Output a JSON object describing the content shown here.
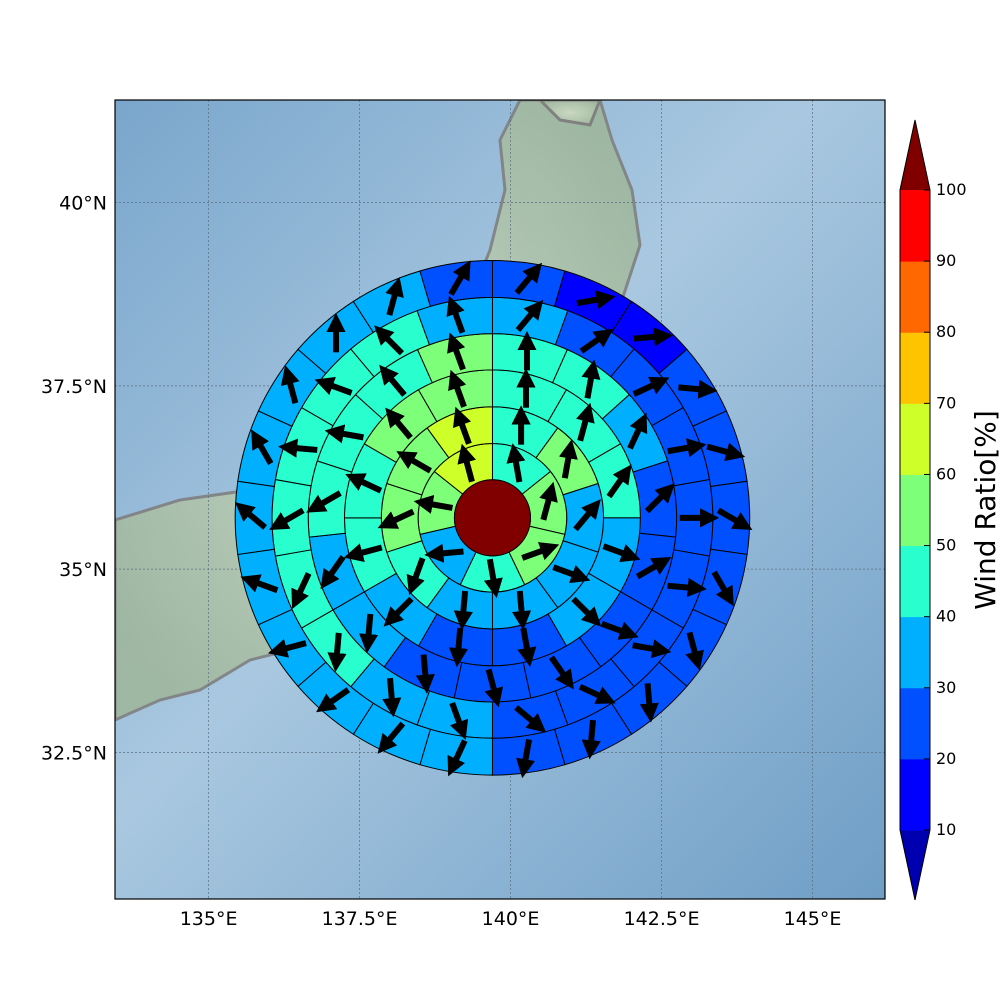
{
  "chart_data": {
    "type": "heatmap",
    "projection": "polar sector grid over map",
    "x_ticks": [
      {
        "lon": 135,
        "label": "135°E"
      },
      {
        "lon": 137.5,
        "label": "137.5°E"
      },
      {
        "lon": 140,
        "label": "140°E"
      },
      {
        "lon": 142.5,
        "label": "142.5°E"
      },
      {
        "lon": 145,
        "label": "145°E"
      }
    ],
    "y_ticks": [
      {
        "lat": 40,
        "label": "40°N"
      },
      {
        "lat": 37.5,
        "label": "37.5°N"
      },
      {
        "lat": 35,
        "label": "35°N"
      },
      {
        "lat": 32.5,
        "label": "32.5°N"
      }
    ],
    "xlim": [
      133.45,
      146.2
    ],
    "ylim": [
      30.5,
      41.4
    ],
    "grid": true,
    "center": {
      "lon": 139.7,
      "lat": 35.7
    },
    "rings_deg": [
      0.63,
      1.23,
      1.84,
      2.45,
      3.05,
      3.65,
      4.26
    ],
    "center_value": 100,
    "colorbar": {
      "label": "Wind Ratio[%]",
      "levels": [
        10,
        20,
        30,
        40,
        50,
        60,
        70,
        80,
        90,
        100
      ],
      "tick_labels": [
        "10",
        "20",
        "30",
        "40",
        "50",
        "60",
        "70",
        "80",
        "90",
        "100"
      ],
      "colors": [
        "#0000b0",
        "#0000ff",
        "#0050ff",
        "#00b0ff",
        "#29ffce",
        "#7dff7a",
        "#ceff29",
        "#ffc400",
        "#ff6800",
        "#ff0000",
        "#800000"
      ],
      "extend": "both"
    },
    "ring_values": [
      [
        45,
        55,
        55,
        45,
        35,
        55,
        65
      ],
      [
        45,
        55,
        35,
        35,
        35,
        35,
        45,
        55,
        55,
        65
      ],
      [
        45,
        45,
        45,
        35,
        35,
        25,
        25,
        35,
        45,
        45,
        55,
        55
      ],
      [
        45,
        45,
        35,
        25,
        25,
        25,
        25,
        25,
        25,
        35,
        35,
        45,
        45,
        45,
        55
      ],
      [
        35,
        25,
        25,
        25,
        25,
        25,
        25,
        25,
        25,
        35,
        35,
        45,
        45,
        45,
        45,
        45,
        45,
        35
      ],
      [
        25,
        15,
        15,
        25,
        25,
        25,
        25,
        25,
        25,
        25,
        25,
        35,
        35,
        35,
        35,
        35,
        35,
        35,
        35,
        35,
        35,
        25
      ]
    ],
    "ring_dirs": [
      [
        -10,
        15,
        70,
        170,
        265,
        280,
        345
      ],
      [
        0,
        10,
        40,
        110,
        175,
        185,
        200,
        245,
        300,
        340
      ],
      [
        0,
        15,
        35,
        110,
        135,
        170,
        185,
        225,
        255,
        295,
        320,
        340
      ],
      [
        0,
        10,
        25,
        45,
        60,
        110,
        145,
        165,
        175,
        185,
        215,
        240,
        280,
        320,
        340
      ],
      [
        40,
        55,
        65,
        80,
        90,
        95,
        100,
        115,
        130,
        160,
        175,
        185,
        205,
        240,
        275,
        290,
        315,
        340
      ],
      [
        40,
        80,
        85,
        95,
        105,
        120,
        150,
        165,
        175,
        185,
        190,
        205,
        220,
        235,
        255,
        290,
        310,
        330,
        345,
        0,
        15,
        30
      ]
    ]
  }
}
